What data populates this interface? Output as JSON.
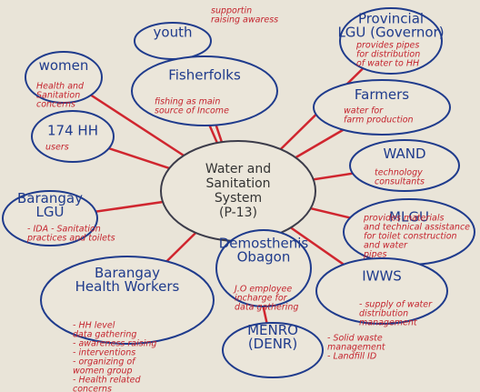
{
  "center": {
    "label": [
      "Water and",
      "Sanitation",
      "System",
      "(P-13)"
    ]
  },
  "nodes": [
    {
      "label": [
        "youth"
      ],
      "note": [
        "supportin",
        "raising awaress"
      ]
    },
    {
      "label": [
        "women"
      ],
      "note": [
        "Health and",
        "Sanitation",
        "concerns"
      ]
    },
    {
      "label": [
        "Fisherfolks"
      ],
      "note": [
        "fishing as main",
        "source of Income"
      ]
    },
    {
      "label": [
        "Provincial",
        "LGU (Governor)"
      ],
      "note": [
        "provides pipes",
        "for distribution",
        "of water to HH"
      ]
    },
    {
      "label": [
        "Farmers"
      ],
      "note": [
        "water for",
        "farm production"
      ]
    },
    {
      "label": [
        "174 HH"
      ],
      "note": [
        "users"
      ]
    },
    {
      "label": [
        "WAND"
      ],
      "note": [
        "technology",
        "consultants"
      ]
    },
    {
      "label": [
        "Barangay",
        "LGU"
      ],
      "note": [
        "- IDA - Sanitation",
        "practices and toilets"
      ]
    },
    {
      "label": [
        "MLGU"
      ],
      "note": [
        "provides materials",
        "and technical assistance",
        "for toilet construction",
        "and water",
        "pipes"
      ]
    },
    {
      "label": [
        "Demosthenis",
        "Obagon"
      ],
      "note": [
        "J.O employee",
        "incharge for",
        "data gathering"
      ]
    },
    {
      "label": [
        "Barangay",
        "Health Workers"
      ],
      "note": [
        "- HH level",
        "data gathering",
        "- awareness raising",
        "- interventions",
        "- organizing of",
        "women group",
        "- Health related",
        "concerns"
      ]
    },
    {
      "label": [
        "IWWS"
      ],
      "note": [
        "- supply of water",
        "distribution",
        "management"
      ]
    },
    {
      "label": [
        "MENRO",
        "(DENR)"
      ],
      "note": [
        "- Solid waste",
        "management",
        "- Landfill ID"
      ]
    }
  ]
}
